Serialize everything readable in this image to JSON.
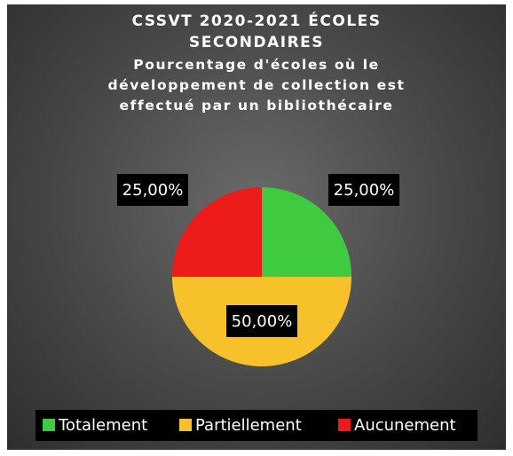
{
  "chart_data": {
    "type": "pie",
    "title": "CSSVT 2020-2021 ÉCOLES SECONDAIRES",
    "subtitle": "Pourcentage d'écoles où le développement de collection est effectué par un bibliothécaire",
    "categories": [
      "Totalement",
      "Partiellement",
      "Aucunement"
    ],
    "values": [
      25,
      50,
      25
    ],
    "value_labels": [
      "25,00%",
      "50,00%",
      "25,00%"
    ],
    "colors": [
      "#3fcb3f",
      "#f7c12c",
      "#ee1b1b"
    ],
    "legend": "bottom"
  }
}
